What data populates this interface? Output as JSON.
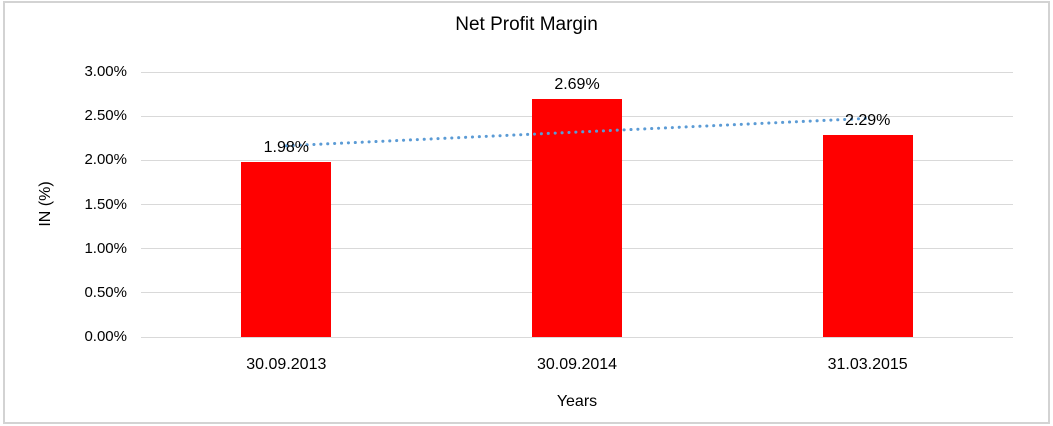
{
  "chart_data": {
    "type": "bar",
    "title": "Net Profit Margin",
    "categories": [
      "30.09.2013",
      "30.09.2014",
      "31.03.2015"
    ],
    "values": [
      1.98,
      2.69,
      2.29
    ],
    "data_labels": [
      "1.98%",
      "2.69%",
      "2.29%"
    ],
    "xlabel": "Years",
    "ylabel": "IN (%)",
    "ylim": [
      0,
      3
    ],
    "ytick_step": 0.5,
    "ytick_labels": [
      "0.00%",
      "0.50%",
      "1.00%",
      "1.50%",
      "2.00%",
      "2.50%",
      "3.00%"
    ],
    "bar_color": "#ff0000",
    "gridlines": true,
    "gridline_color": "#d9d9d9",
    "legend": "none",
    "text_color": "#000000",
    "border_color": "#d3d3d3",
    "trendline": {
      "type": "linear",
      "style": "dotted",
      "color": "#5b9bd5",
      "start_value": 2.165,
      "end_value": 2.475
    }
  }
}
